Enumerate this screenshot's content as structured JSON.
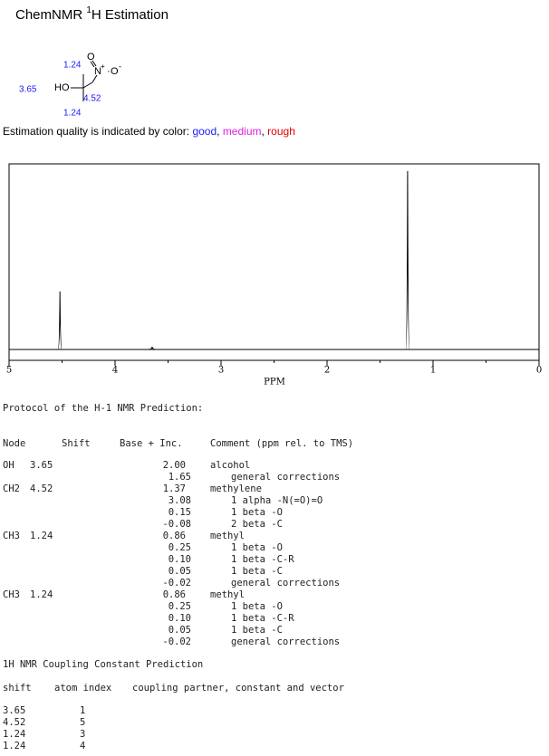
{
  "header": {
    "title_prefix": "ChemNMR ",
    "title_sup": "1",
    "title_suffix": "H Estimation"
  },
  "molecule": {
    "labels": {
      "ho": "HO",
      "n": "N",
      "plus": "+",
      "o_top": "O",
      "o_right": "O",
      "minus": "-",
      "shift_oh": "3.65",
      "shift_ch3_top": "1.24",
      "shift_ch3_bottom": "1.24",
      "shift_ch2": "4.52"
    }
  },
  "quality": {
    "text": "Estimation quality is indicated by color: ",
    "good": "good",
    "sep1": ", ",
    "medium": "medium",
    "sep2": ", ",
    "rough": "rough"
  },
  "spectrum": {
    "xlim": [
      5,
      0
    ],
    "xticks": [
      5,
      4,
      3,
      2,
      1,
      0
    ],
    "xminorticks": [
      4.5,
      3.5,
      2.5,
      1.5,
      0.5
    ],
    "xlabel": "PPM",
    "ylim": [
      0,
      104
    ],
    "peaks": [
      {
        "ppm": 4.52,
        "height": 32.5
      },
      {
        "ppm": 3.65,
        "height": 1.5
      },
      {
        "ppm": 1.24,
        "height": 100
      }
    ]
  },
  "protocol": {
    "title": "Protocol of the H-1 NMR Prediction:",
    "headers": [
      "Node",
      "Shift",
      "Base + Inc.",
      "Comment (ppm rel. to TMS)"
    ],
    "groups": [
      {
        "node": "OH",
        "shift": "3.65",
        "base": "2.00",
        "comment": "alcohol",
        "increments": [
          {
            "value": "1.65",
            "comment": "general corrections"
          }
        ]
      },
      {
        "node": "CH2",
        "shift": "4.52",
        "base": "1.37",
        "comment": "methylene",
        "increments": [
          {
            "value": "3.08",
            "comment": "1 alpha -N(=O)=O"
          },
          {
            "value": "0.15",
            "comment": "1 beta -O"
          },
          {
            "value": "-0.08",
            "comment": "2 beta -C"
          }
        ]
      },
      {
        "node": "CH3",
        "shift": "1.24",
        "base": "0.86",
        "comment": "methyl",
        "increments": [
          {
            "value": "0.25",
            "comment": "1 beta -O"
          },
          {
            "value": "0.10",
            "comment": "1 beta -C-R"
          },
          {
            "value": "0.05",
            "comment": "1 beta -C"
          },
          {
            "value": "-0.02",
            "comment": "general corrections"
          }
        ]
      },
      {
        "node": "CH3",
        "shift": "1.24",
        "base": "0.86",
        "comment": "methyl",
        "increments": [
          {
            "value": "0.25",
            "comment": "1 beta -O"
          },
          {
            "value": "0.10",
            "comment": "1 beta -C-R"
          },
          {
            "value": "0.05",
            "comment": "1 beta -C"
          },
          {
            "value": "-0.02",
            "comment": "general corrections"
          }
        ]
      }
    ]
  },
  "coupling": {
    "title": "1H NMR Coupling Constant Prediction",
    "headers": [
      "shift",
      "atom index",
      "coupling partner, constant and vector"
    ],
    "rows": [
      [
        "3.65",
        "1"
      ],
      [
        "4.52",
        "5"
      ],
      [
        "1.24",
        "3"
      ],
      [
        "1.24",
        "4"
      ]
    ]
  }
}
